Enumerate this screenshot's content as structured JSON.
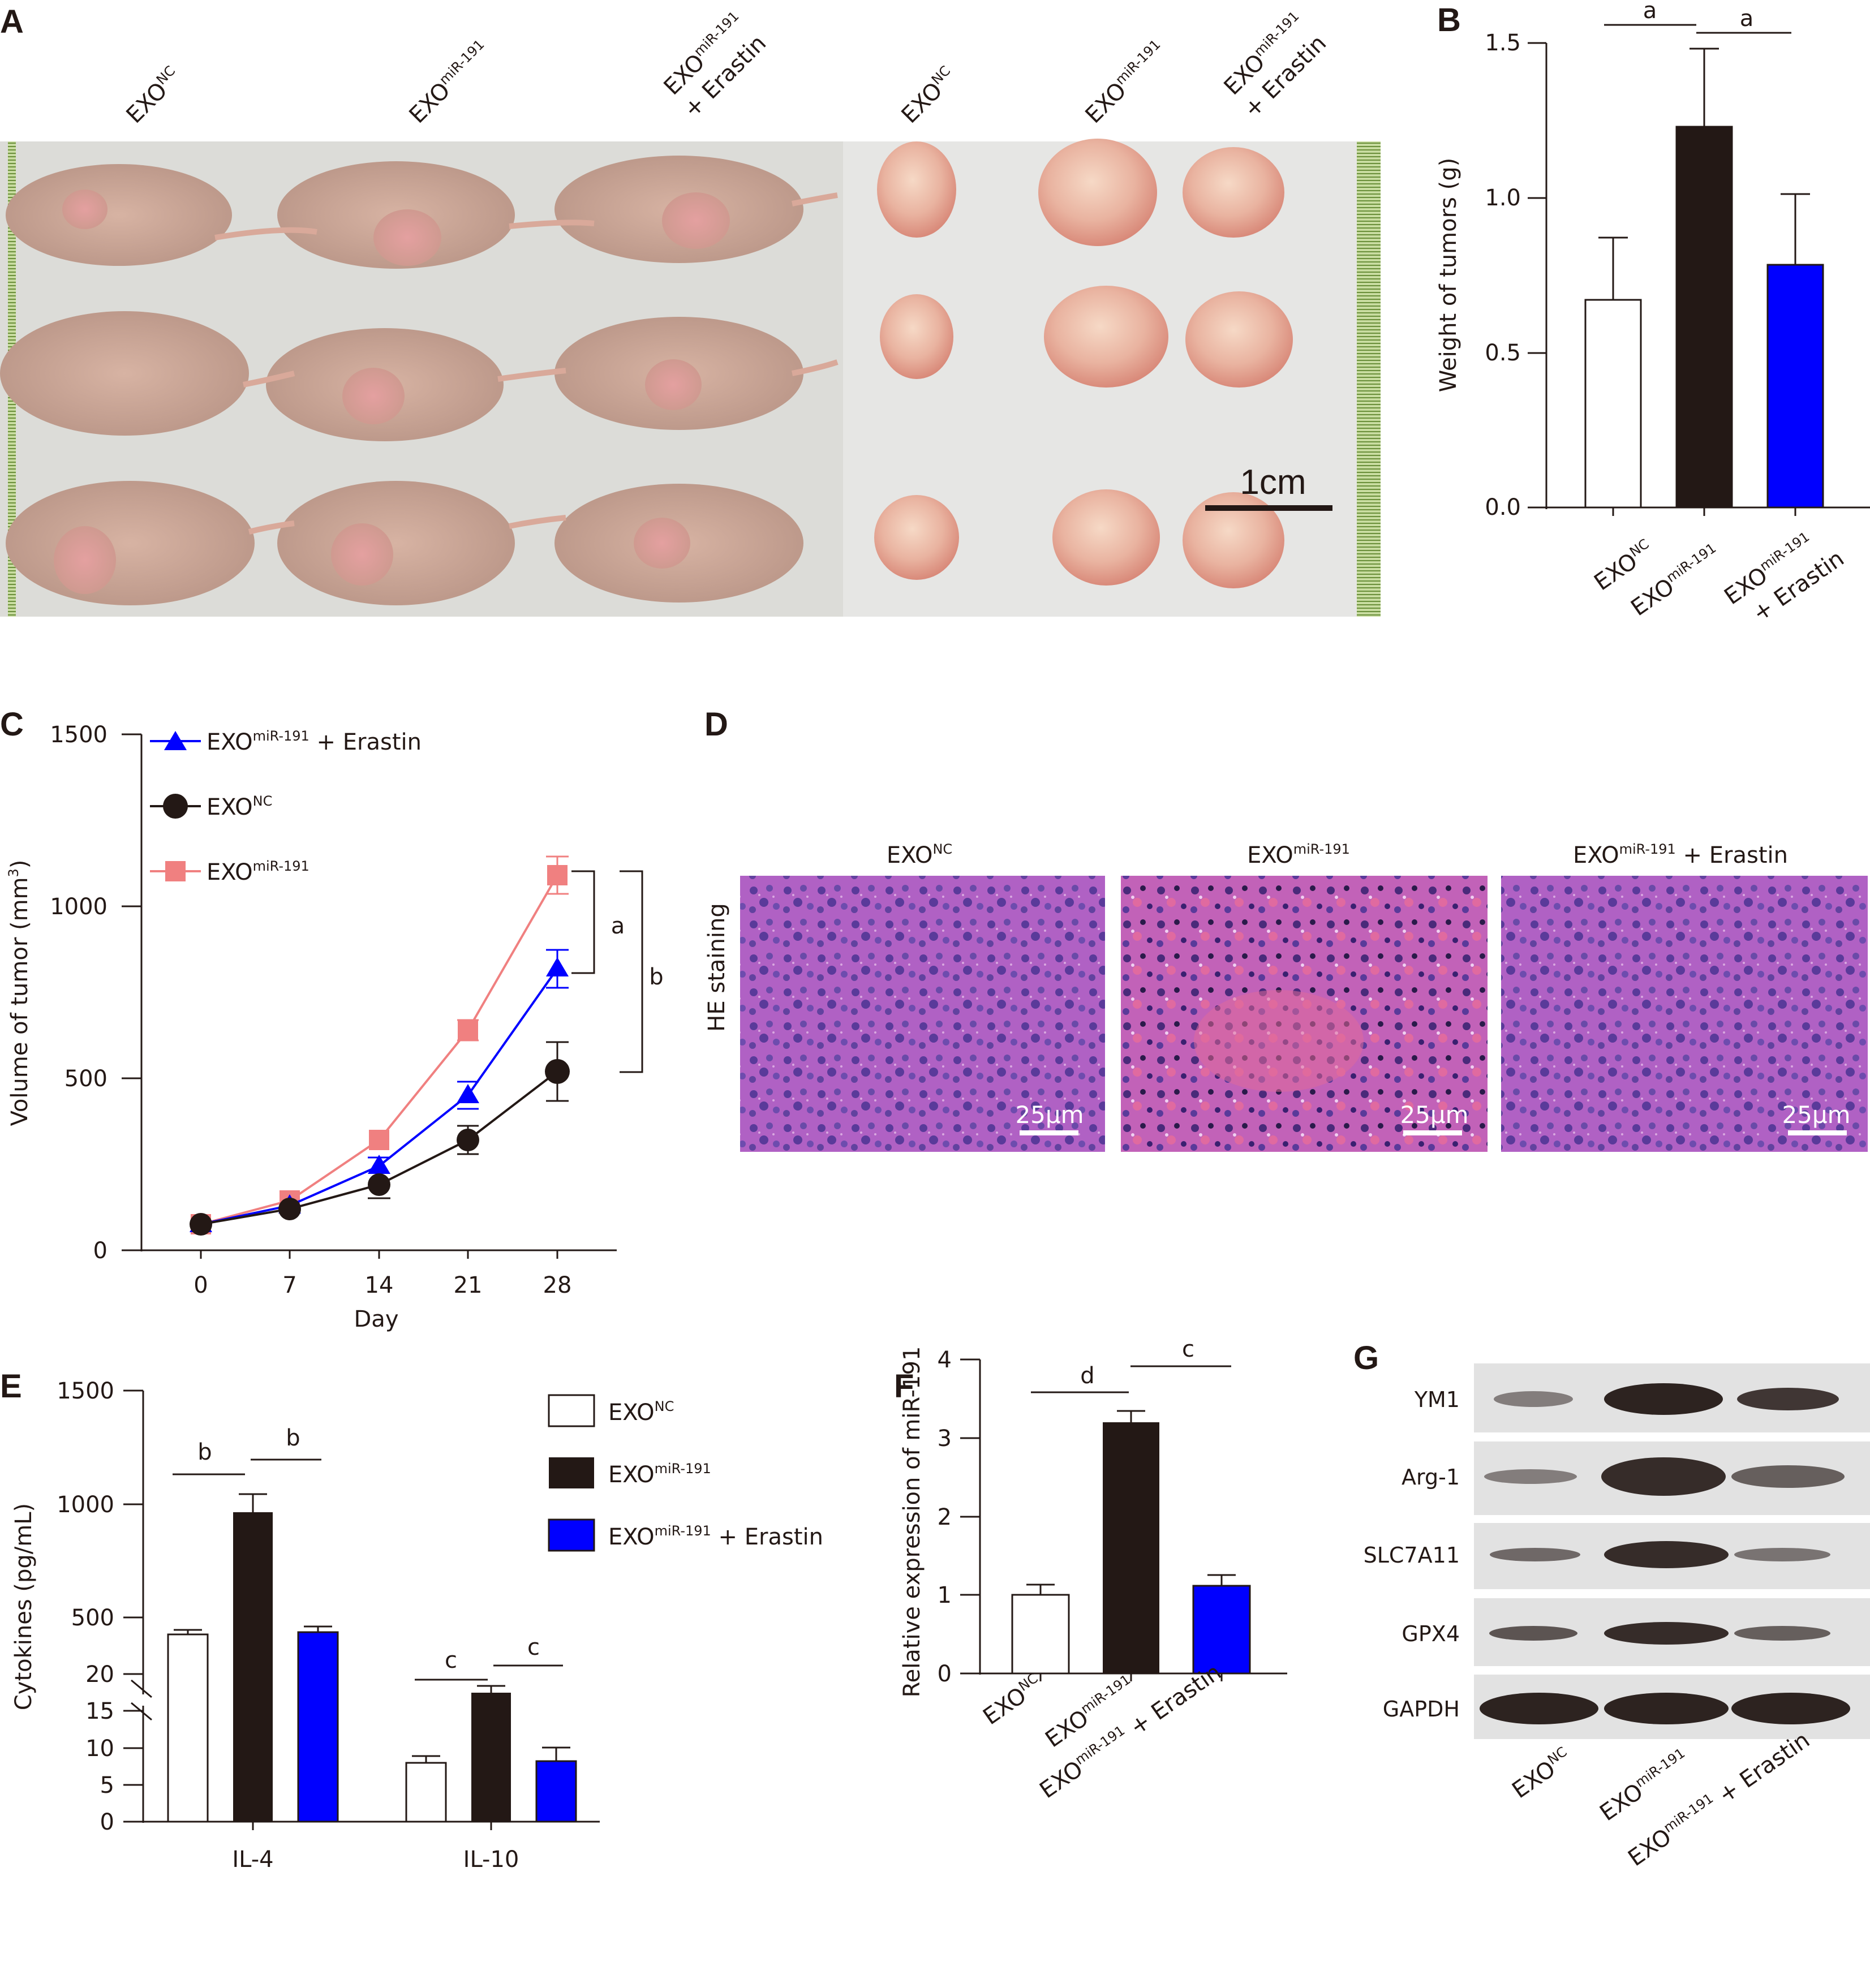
{
  "figure": {
    "panel_labels": [
      "A",
      "B",
      "C",
      "D",
      "E",
      "F",
      "G"
    ]
  },
  "groups": {
    "nc": {
      "base": "EXO",
      "sup": "NC"
    },
    "mir": {
      "base": "EXO",
      "sup": "miR-191"
    },
    "erastin": {
      "base": "EXO",
      "sup": "miR-191",
      "suffix": "+ Erastin"
    }
  },
  "colors": {
    "nc": "#ffffff",
    "mir": "#231815",
    "erastin": "#0000ff",
    "line_nc": "#231815",
    "line_mir": "#f08080",
    "line_erastin": "#0000ff"
  },
  "panel_a": {
    "column_labels": [
      {
        "base": "EXO",
        "sup": "NC"
      },
      {
        "base": "EXO",
        "sup": "miR-191"
      },
      {
        "base": "EXO",
        "sup": "miR-191",
        "suffix": "+ Erastin"
      },
      {
        "base": "EXO",
        "sup": "NC"
      },
      {
        "base": "EXO",
        "sup": "miR-191"
      },
      {
        "base": "EXO",
        "sup": "miR-191",
        "suffix": "+ Erastin"
      }
    ],
    "scale_bar": "1cm",
    "photos": [
      "Nude mice with subcutaneous tumors (3 rows × 3 groups)",
      "Excised tumors (3 rows × 3 groups)"
    ]
  },
  "chart_data": [
    {
      "panel": "B",
      "type": "bar",
      "title": "",
      "xlabel": "",
      "ylabel": "Weight of tumors (g)",
      "categories": [
        "EXO^NC",
        "EXO^miR-191",
        "EXO^miR-191 + Erastin"
      ],
      "values": [
        0.67,
        1.23,
        0.79
      ],
      "errors": [
        0.2,
        0.25,
        0.23
      ],
      "bar_colors": [
        "#ffffff",
        "#231815",
        "#0000ff"
      ],
      "ylim": [
        0,
        1.5
      ],
      "yticks": [
        "0.0",
        "0.5",
        "1.0",
        "1.5"
      ],
      "significance": [
        {
          "pair": [
            0,
            1
          ],
          "label": "a"
        },
        {
          "pair": [
            1,
            2
          ],
          "label": "a"
        }
      ],
      "grid": false
    },
    {
      "panel": "C",
      "type": "line",
      "title": "",
      "xlabel": "Day",
      "ylabel": "Volume of tumor (mm3)",
      "x": [
        0,
        7,
        14,
        21,
        28
      ],
      "xticks": [
        "0",
        "7",
        "14",
        "21",
        "28"
      ],
      "yticks": [
        "0",
        "500",
        "1000",
        "1500"
      ],
      "ylim": [
        0,
        1500
      ],
      "series": [
        {
          "name": "EXO^miR-191 + Erastin",
          "marker": "triangle",
          "color": "#0000ff",
          "values": [
            75,
            130,
            245,
            450,
            820
          ],
          "errors": [
            10,
            10,
            25,
            40,
            55
          ]
        },
        {
          "name": "EXO^NC",
          "marker": "circle",
          "color": "#231815",
          "values": [
            75,
            120,
            190,
            320,
            520
          ],
          "errors": [
            10,
            10,
            20,
            40,
            85
          ]
        },
        {
          "name": "EXO^miR-191",
          "marker": "square",
          "color": "#f08080",
          "values": [
            75,
            145,
            320,
            640,
            1090
          ],
          "errors": [
            10,
            10,
            20,
            30,
            55
          ]
        }
      ],
      "legend_position": "upper-left",
      "significance": [
        {
          "between": [
            "EXO^miR-191",
            "EXO^miR-191 + Erastin"
          ],
          "label": "a"
        },
        {
          "between": [
            "EXO^miR-191",
            "EXO^NC"
          ],
          "label": "b"
        }
      ],
      "grid": false
    },
    {
      "panel": "E",
      "type": "bar",
      "title": "",
      "xlabel": "",
      "ylabel": "Cytokines (pg/mL)",
      "categories": [
        "IL-4",
        "IL-10"
      ],
      "series": [
        {
          "name": "EXO^NC",
          "color": "#ffffff",
          "values": [
            450,
            8.0
          ],
          "errors": [
            20,
            0.9
          ]
        },
        {
          "name": "EXO^miR-191",
          "color": "#231815",
          "values": [
            975,
            17.5
          ],
          "errors": [
            80,
            0.9
          ]
        },
        {
          "name": "EXO^miR-191 + Erastin",
          "color": "#0000ff",
          "values": [
            460,
            8.2
          ],
          "errors": [
            25,
            1.9
          ]
        }
      ],
      "broken_axis": {
        "lower": [
          0,
          20
        ],
        "upper": [
          500,
          1500
        ]
      },
      "yticks": [
        "0",
        "5",
        "10",
        "15",
        "20",
        "500",
        "1000",
        "1500"
      ],
      "significance": [
        {
          "category": "IL-4",
          "pair": [
            0,
            1
          ],
          "label": "b"
        },
        {
          "category": "IL-4",
          "pair": [
            1,
            2
          ],
          "label": "b"
        },
        {
          "category": "IL-10",
          "pair": [
            0,
            1
          ],
          "label": "c"
        },
        {
          "category": "IL-10",
          "pair": [
            1,
            2
          ],
          "label": "c"
        }
      ],
      "legend_position": "upper-right",
      "grid": false
    },
    {
      "panel": "F",
      "type": "bar",
      "title": "",
      "xlabel": "",
      "ylabel": "Relative expression of miR-191",
      "categories": [
        "EXO^NC",
        "EXO^miR-191",
        "EXO^miR-191 + Erastin"
      ],
      "values": [
        1.0,
        3.2,
        1.12
      ],
      "errors": [
        0.13,
        0.15,
        0.14
      ],
      "bar_colors": [
        "#ffffff",
        "#231815",
        "#0000ff"
      ],
      "ylim": [
        0,
        4
      ],
      "yticks": [
        "0",
        "1",
        "2",
        "3",
        "4"
      ],
      "significance": [
        {
          "pair": [
            0,
            1
          ],
          "label": "d"
        },
        {
          "pair": [
            1,
            2
          ],
          "label": "c"
        }
      ],
      "grid": false
    }
  ],
  "panel_d": {
    "row_label": "HE staining",
    "column_labels": [
      {
        "base": "EXO",
        "sup": "NC"
      },
      {
        "base": "EXO",
        "sup": "miR-191"
      },
      {
        "base": "EXO",
        "sup": "miR-191",
        "suffix": "+ Erastin"
      }
    ],
    "scale_bar": "25μm"
  },
  "panel_g": {
    "proteins": [
      "YM1",
      "Arg-1",
      "SLC7A11",
      "GPX4",
      "GAPDH"
    ],
    "lanes": [
      {
        "base": "EXO",
        "sup": "NC"
      },
      {
        "base": "EXO",
        "sup": "miR-191"
      },
      {
        "base": "EXO",
        "sup": "miR-191",
        "suffix": "+ Erastin"
      }
    ],
    "band_intensity": [
      [
        0.35,
        0.95,
        0.8
      ],
      [
        0.4,
        0.95,
        0.65
      ],
      [
        0.45,
        0.85,
        0.5
      ],
      [
        0.55,
        0.85,
        0.55
      ],
      [
        0.95,
        0.95,
        0.95
      ]
    ]
  }
}
